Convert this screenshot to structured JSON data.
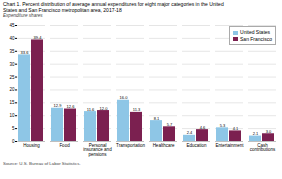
{
  "chart_data": {
    "type": "bar",
    "title": "Chart 1. Percent distribution of average annual expenditures for eight major categories in the United\nStates and San Francisco metropolitan area, 2017-18",
    "subtitle": "Expenditure shares",
    "source": "Source: U.S. Bureau of Labor Statistics.",
    "categories": [
      "Housing",
      "Food",
      "Personal\ninsurance and\npensions",
      "Transportation",
      "Healthcare",
      "Education",
      "Entertainment",
      "Cash\ncontributions"
    ],
    "series": [
      {
        "name": "United States",
        "color": "#8ec6e6",
        "values": [
          33.6,
          12.9,
          11.6,
          16.0,
          8.1,
          2.4,
          5.3,
          2.1
        ],
        "value_labels": [
          "33.6",
          "12.9",
          "11.6",
          "16.0",
          "8.1",
          "2.4",
          "5.3",
          "2.1"
        ]
      },
      {
        "name": "San Francisco",
        "color": "#7b2050",
        "values": [
          39.4,
          12.6,
          12.0,
          11.3,
          5.7,
          4.6,
          4.1,
          3.0
        ],
        "value_labels": [
          "39.4",
          "12.6",
          "12.0",
          "11.3",
          "5.7",
          "4.6",
          "4.1",
          "3.0"
        ]
      }
    ],
    "ylim": [
      0,
      45
    ],
    "yticks": [
      0,
      5,
      10,
      15,
      20,
      25,
      30,
      35,
      40,
      45
    ],
    "grid": true,
    "legend": "upper right",
    "data_labels": true
  }
}
